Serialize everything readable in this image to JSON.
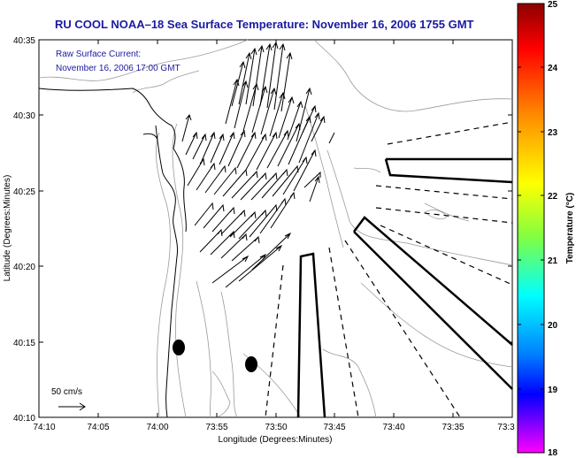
{
  "title": "RU COOL  NOAA–18  Sea Surface Temperature:  November 16, 2006 1755 GMT",
  "overlay": {
    "line1": "Raw Surface Current:",
    "line2": "November 16, 2006 17:00 GMT"
  },
  "scale_label": "50 cm/s",
  "x_axis": {
    "label": "Longitude (Degrees:Minutes)",
    "ticks": [
      "74:10",
      "74:05",
      "74:00",
      "73:55",
      "73:50",
      "73:45",
      "73:40",
      "73:35",
      "73:3"
    ]
  },
  "y_axis": {
    "label": "Latitude (Degrees:Minutes)",
    "ticks": [
      "40:35",
      "40:30",
      "40:25",
      "40:20",
      "40:15",
      "40:10"
    ]
  },
  "colorbar": {
    "label": "Temperature (°C)",
    "ticks": [
      "25",
      "24",
      "23",
      "22",
      "21",
      "20",
      "19",
      "18"
    ],
    "colors": [
      "#8b0000",
      "#ff0000",
      "#ff8c00",
      "#ffff00",
      "#80ff40",
      "#00ffff",
      "#0080ff",
      "#0000ff",
      "#ff00ff"
    ]
  },
  "colors": {
    "title": "#1a1aa0",
    "contour": "#999999",
    "coast": "#000000"
  }
}
